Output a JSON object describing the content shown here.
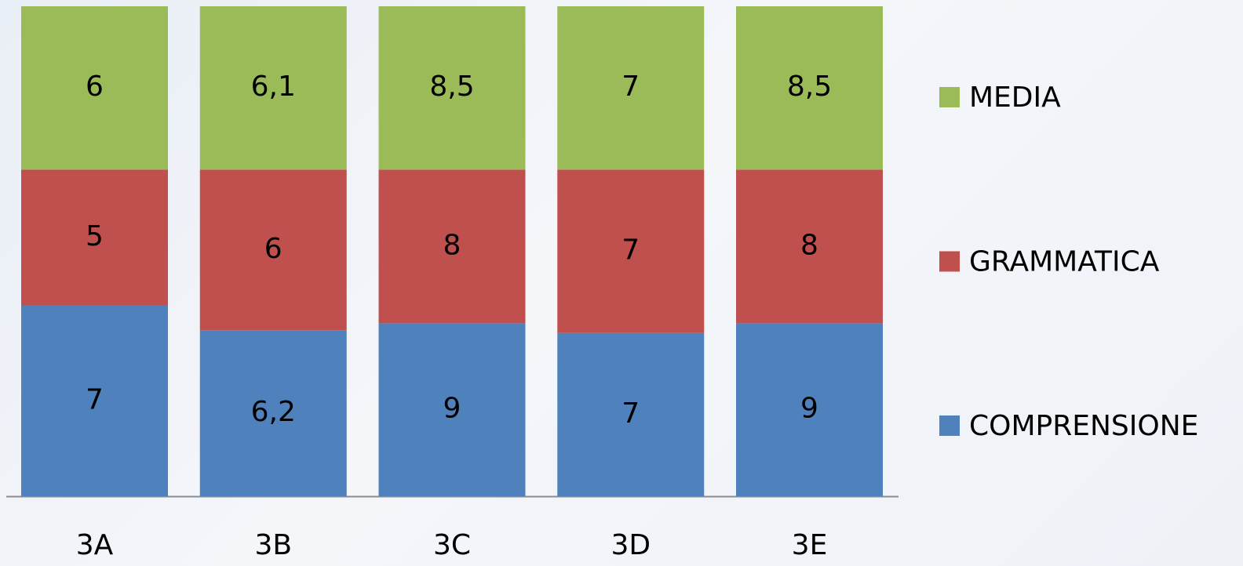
{
  "chart_data": {
    "type": "bar",
    "stacking": "percent",
    "categories": [
      "3A",
      "3B",
      "3C",
      "3D",
      "3E"
    ],
    "series": [
      {
        "name": "COMPRENSIONE",
        "color": "#4f81bd",
        "values": [
          7,
          6.2,
          9,
          7,
          9
        ],
        "value_labels": [
          "7",
          "6,2",
          "9",
          "7",
          "9"
        ]
      },
      {
        "name": "GRAMMATICA",
        "color": "#c0504d",
        "values": [
          5,
          6,
          8,
          7,
          8
        ],
        "value_labels": [
          "5",
          "6",
          "8",
          "7",
          "8"
        ]
      },
      {
        "name": "MEDIA",
        "color": "#9bbb59",
        "values": [
          6,
          6.1,
          8.5,
          7,
          8.5
        ],
        "value_labels": [
          "6",
          "6,1",
          "8,5",
          "7",
          "8,5"
        ]
      }
    ],
    "legend": "right"
  }
}
